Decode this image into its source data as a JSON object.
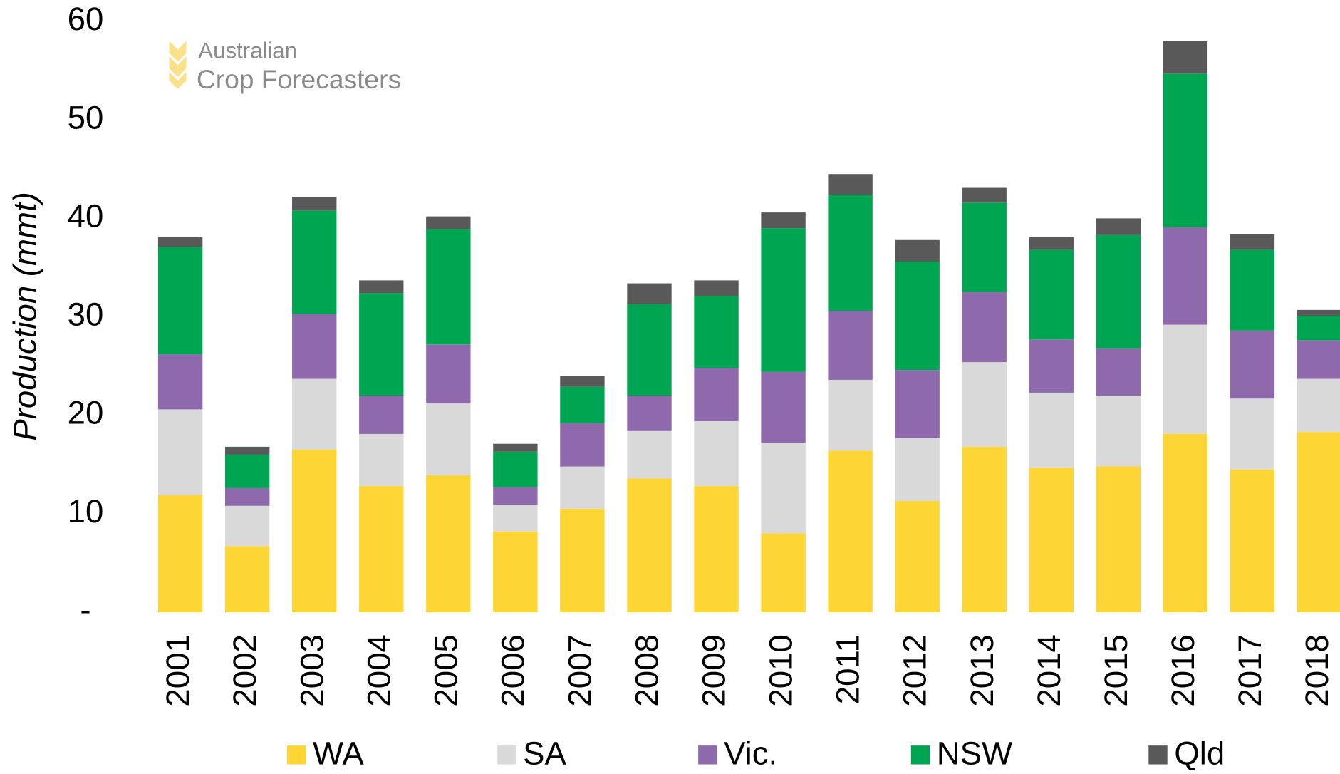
{
  "chart_data": {
    "type": "stacked_bar",
    "logo": {
      "line1": "Australian",
      "line2": "Crop Forecasters"
    },
    "y_label": "Production (mmt)",
    "categories": [
      "2001",
      "2002",
      "2003",
      "2004",
      "2005",
      "2006",
      "2007",
      "2008",
      "2009",
      "2010",
      "2011",
      "2012",
      "2013",
      "2014",
      "2015",
      "2016",
      "2017",
      "2018"
    ],
    "series": [
      {
        "name": "WA",
        "color": "#fdd535",
        "values": [
          11.9,
          6.7,
          16.5,
          12.8,
          13.9,
          8.2,
          10.5,
          13.6,
          12.8,
          8.0,
          16.4,
          11.3,
          16.8,
          14.7,
          14.8,
          18.1,
          14.5,
          18.3
        ]
      },
      {
        "name": "SA",
        "color": "#d9d9d9",
        "values": [
          8.7,
          4.1,
          7.2,
          5.3,
          7.3,
          2.7,
          4.3,
          4.8,
          6.6,
          9.2,
          7.2,
          6.4,
          8.6,
          7.6,
          7.2,
          11.1,
          7.2,
          5.4
        ]
      },
      {
        "name": "Vic.",
        "color": "#8e6aad",
        "values": [
          5.6,
          1.8,
          6.6,
          3.9,
          6.0,
          1.8,
          4.4,
          3.6,
          5.4,
          7.2,
          7.0,
          6.9,
          7.1,
          5.4,
          4.8,
          9.9,
          6.9,
          3.9
        ]
      },
      {
        "name": "NSW",
        "color": "#00a551",
        "values": [
          10.9,
          3.4,
          10.5,
          10.4,
          11.7,
          3.6,
          3.7,
          9.3,
          7.3,
          14.6,
          11.8,
          11.0,
          9.1,
          9.1,
          11.5,
          15.6,
          8.2,
          2.5
        ]
      },
      {
        "name": "Qld",
        "color": "#595959",
        "values": [
          1.0,
          0.8,
          1.4,
          1.3,
          1.3,
          0.8,
          1.1,
          2.1,
          1.6,
          1.6,
          2.1,
          2.2,
          1.5,
          1.3,
          1.7,
          3.3,
          1.6,
          0.6
        ]
      }
    ],
    "ylim": [
      0,
      60
    ],
    "yticks": [
      {
        "value": 0,
        "label": "-"
      },
      10,
      20,
      30,
      40,
      50,
      60
    ],
    "grid": false,
    "legend": "bottom"
  }
}
